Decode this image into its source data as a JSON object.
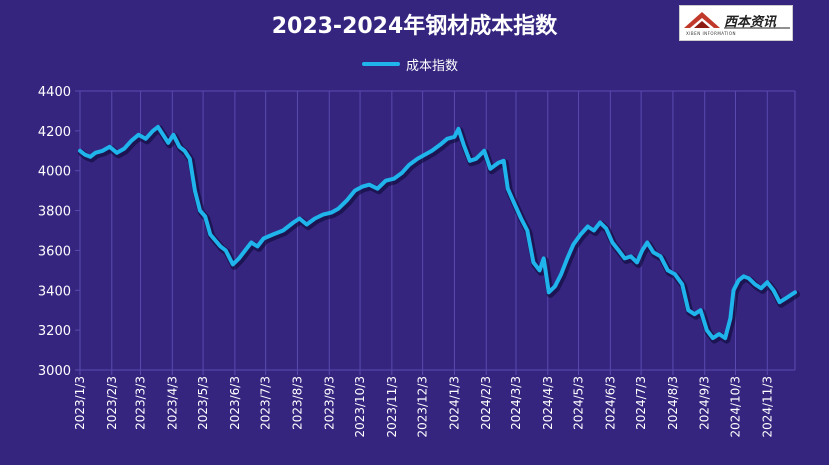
{
  "chart_data": {
    "type": "line",
    "title": "2023-2024年钢材成本指数",
    "legend_position": "top-center",
    "grid": "vertical",
    "ylim": [
      3000,
      4400
    ],
    "yticks": [
      3000,
      3200,
      3400,
      3600,
      3800,
      4000,
      4200,
      4400
    ],
    "xlim": [
      "2023/1/3",
      "2024/11/30"
    ],
    "xticks": [
      "2023/1/3",
      "2023/2/3",
      "2023/3/3",
      "2023/4/3",
      "2023/5/3",
      "2023/6/3",
      "2023/7/3",
      "2023/8/3",
      "2023/9/3",
      "2023/10/3",
      "2023/11/3",
      "2023/12/3",
      "2024/1/3",
      "2024/2/3",
      "2024/3/3",
      "2024/4/3",
      "2024/5/3",
      "2024/6/3",
      "2024/7/3",
      "2024/8/3",
      "2024/9/3",
      "2024/10/3",
      "2024/11/3"
    ],
    "series": [
      {
        "name": "成本指数",
        "color": "#1fb5ec",
        "points": [
          [
            "2023/1/3",
            4100
          ],
          [
            "2023/1/8",
            4080
          ],
          [
            "2023/1/13",
            4070
          ],
          [
            "2023/1/18",
            4090
          ],
          [
            "2023/1/25",
            4100
          ],
          [
            "2023/2/1",
            4120
          ],
          [
            "2023/2/8",
            4090
          ],
          [
            "2023/2/15",
            4110
          ],
          [
            "2023/2/22",
            4150
          ],
          [
            "2023/3/1",
            4180
          ],
          [
            "2023/3/8",
            4160
          ],
          [
            "2023/3/15",
            4200
          ],
          [
            "2023/3/20",
            4220
          ],
          [
            "2023/3/25",
            4180
          ],
          [
            "2023/3/30",
            4140
          ],
          [
            "2023/4/4",
            4180
          ],
          [
            "2023/4/10",
            4120
          ],
          [
            "2023/4/15",
            4100
          ],
          [
            "2023/4/20",
            4060
          ],
          [
            "2023/4/25",
            3900
          ],
          [
            "2023/4/30",
            3800
          ],
          [
            "2023/5/5",
            3770
          ],
          [
            "2023/5/10",
            3680
          ],
          [
            "2023/5/15",
            3650
          ],
          [
            "2023/5/20",
            3620
          ],
          [
            "2023/5/25",
            3600
          ],
          [
            "2023/6/1",
            3530
          ],
          [
            "2023/6/7",
            3560
          ],
          [
            "2023/6/13",
            3600
          ],
          [
            "2023/6/19",
            3640
          ],
          [
            "2023/6/25",
            3620
          ],
          [
            "2023/7/1",
            3660
          ],
          [
            "2023/7/10",
            3680
          ],
          [
            "2023/7/20",
            3700
          ],
          [
            "2023/7/30",
            3740
          ],
          [
            "2023/8/5",
            3760
          ],
          [
            "2023/8/12",
            3730
          ],
          [
            "2023/8/20",
            3760
          ],
          [
            "2023/8/28",
            3780
          ],
          [
            "2023/9/5",
            3790
          ],
          [
            "2023/9/12",
            3810
          ],
          [
            "2023/9/20",
            3850
          ],
          [
            "2023/9/28",
            3900
          ],
          [
            "2023/10/5",
            3920
          ],
          [
            "2023/10/12",
            3930
          ],
          [
            "2023/10/20",
            3910
          ],
          [
            "2023/10/28",
            3950
          ],
          [
            "2023/11/5",
            3960
          ],
          [
            "2023/11/13",
            3990
          ],
          [
            "2023/11/20",
            4030
          ],
          [
            "2023/11/28",
            4060
          ],
          [
            "2023/12/5",
            4080
          ],
          [
            "2023/12/12",
            4100
          ],
          [
            "2023/12/20",
            4130
          ],
          [
            "2023/12/27",
            4160
          ],
          [
            "2024/1/3",
            4170
          ],
          [
            "2024/1/7",
            4210
          ],
          [
            "2024/1/12",
            4130
          ],
          [
            "2024/1/18",
            4050
          ],
          [
            "2024/1/24",
            4060
          ],
          [
            "2024/2/1",
            4100
          ],
          [
            "2024/2/7",
            4010
          ],
          [
            "2024/2/15",
            4040
          ],
          [
            "2024/2/20",
            4050
          ],
          [
            "2024/2/24",
            3910
          ],
          [
            "2024/3/1",
            3840
          ],
          [
            "2024/3/8",
            3760
          ],
          [
            "2024/3/14",
            3700
          ],
          [
            "2024/3/20",
            3540
          ],
          [
            "2024/3/26",
            3500
          ],
          [
            "2024/3/30",
            3560
          ],
          [
            "2024/4/4",
            3390
          ],
          [
            "2024/4/10",
            3420
          ],
          [
            "2024/4/16",
            3480
          ],
          [
            "2024/4/22",
            3560
          ],
          [
            "2024/4/28",
            3630
          ],
          [
            "2024/5/5",
            3680
          ],
          [
            "2024/5/12",
            3720
          ],
          [
            "2024/5/18",
            3700
          ],
          [
            "2024/5/24",
            3740
          ],
          [
            "2024/5/30",
            3710
          ],
          [
            "2024/6/5",
            3640
          ],
          [
            "2024/6/11",
            3600
          ],
          [
            "2024/6/17",
            3560
          ],
          [
            "2024/6/23",
            3570
          ],
          [
            "2024/6/29",
            3540
          ],
          [
            "2024/7/4",
            3600
          ],
          [
            "2024/7/9",
            3640
          ],
          [
            "2024/7/15",
            3590
          ],
          [
            "2024/7/22",
            3570
          ],
          [
            "2024/7/29",
            3500
          ],
          [
            "2024/8/5",
            3480
          ],
          [
            "2024/8/12",
            3430
          ],
          [
            "2024/8/18",
            3300
          ],
          [
            "2024/8/24",
            3280
          ],
          [
            "2024/8/30",
            3300
          ],
          [
            "2024/9/5",
            3200
          ],
          [
            "2024/9/11",
            3160
          ],
          [
            "2024/9/17",
            3180
          ],
          [
            "2024/9/23",
            3160
          ],
          [
            "2024/9/28",
            3260
          ],
          [
            "2024/10/1",
            3400
          ],
          [
            "2024/10/6",
            3450
          ],
          [
            "2024/10/11",
            3470
          ],
          [
            "2024/10/16",
            3460
          ],
          [
            "2024/10/22",
            3430
          ],
          [
            "2024/10/28",
            3410
          ],
          [
            "2024/11/3",
            3440
          ],
          [
            "2024/11/9",
            3400
          ],
          [
            "2024/11/15",
            3340
          ],
          [
            "2024/11/21",
            3360
          ],
          [
            "2024/11/27",
            3380
          ],
          [
            "2024/11/30",
            3390
          ]
        ]
      }
    ]
  },
  "logo": {
    "text": "西本资讯",
    "subtext": "XIBEN INFORMATION"
  },
  "colors": {
    "background": "#35257f",
    "line": "#1fb5ec",
    "grid": "#5a4ab0"
  }
}
